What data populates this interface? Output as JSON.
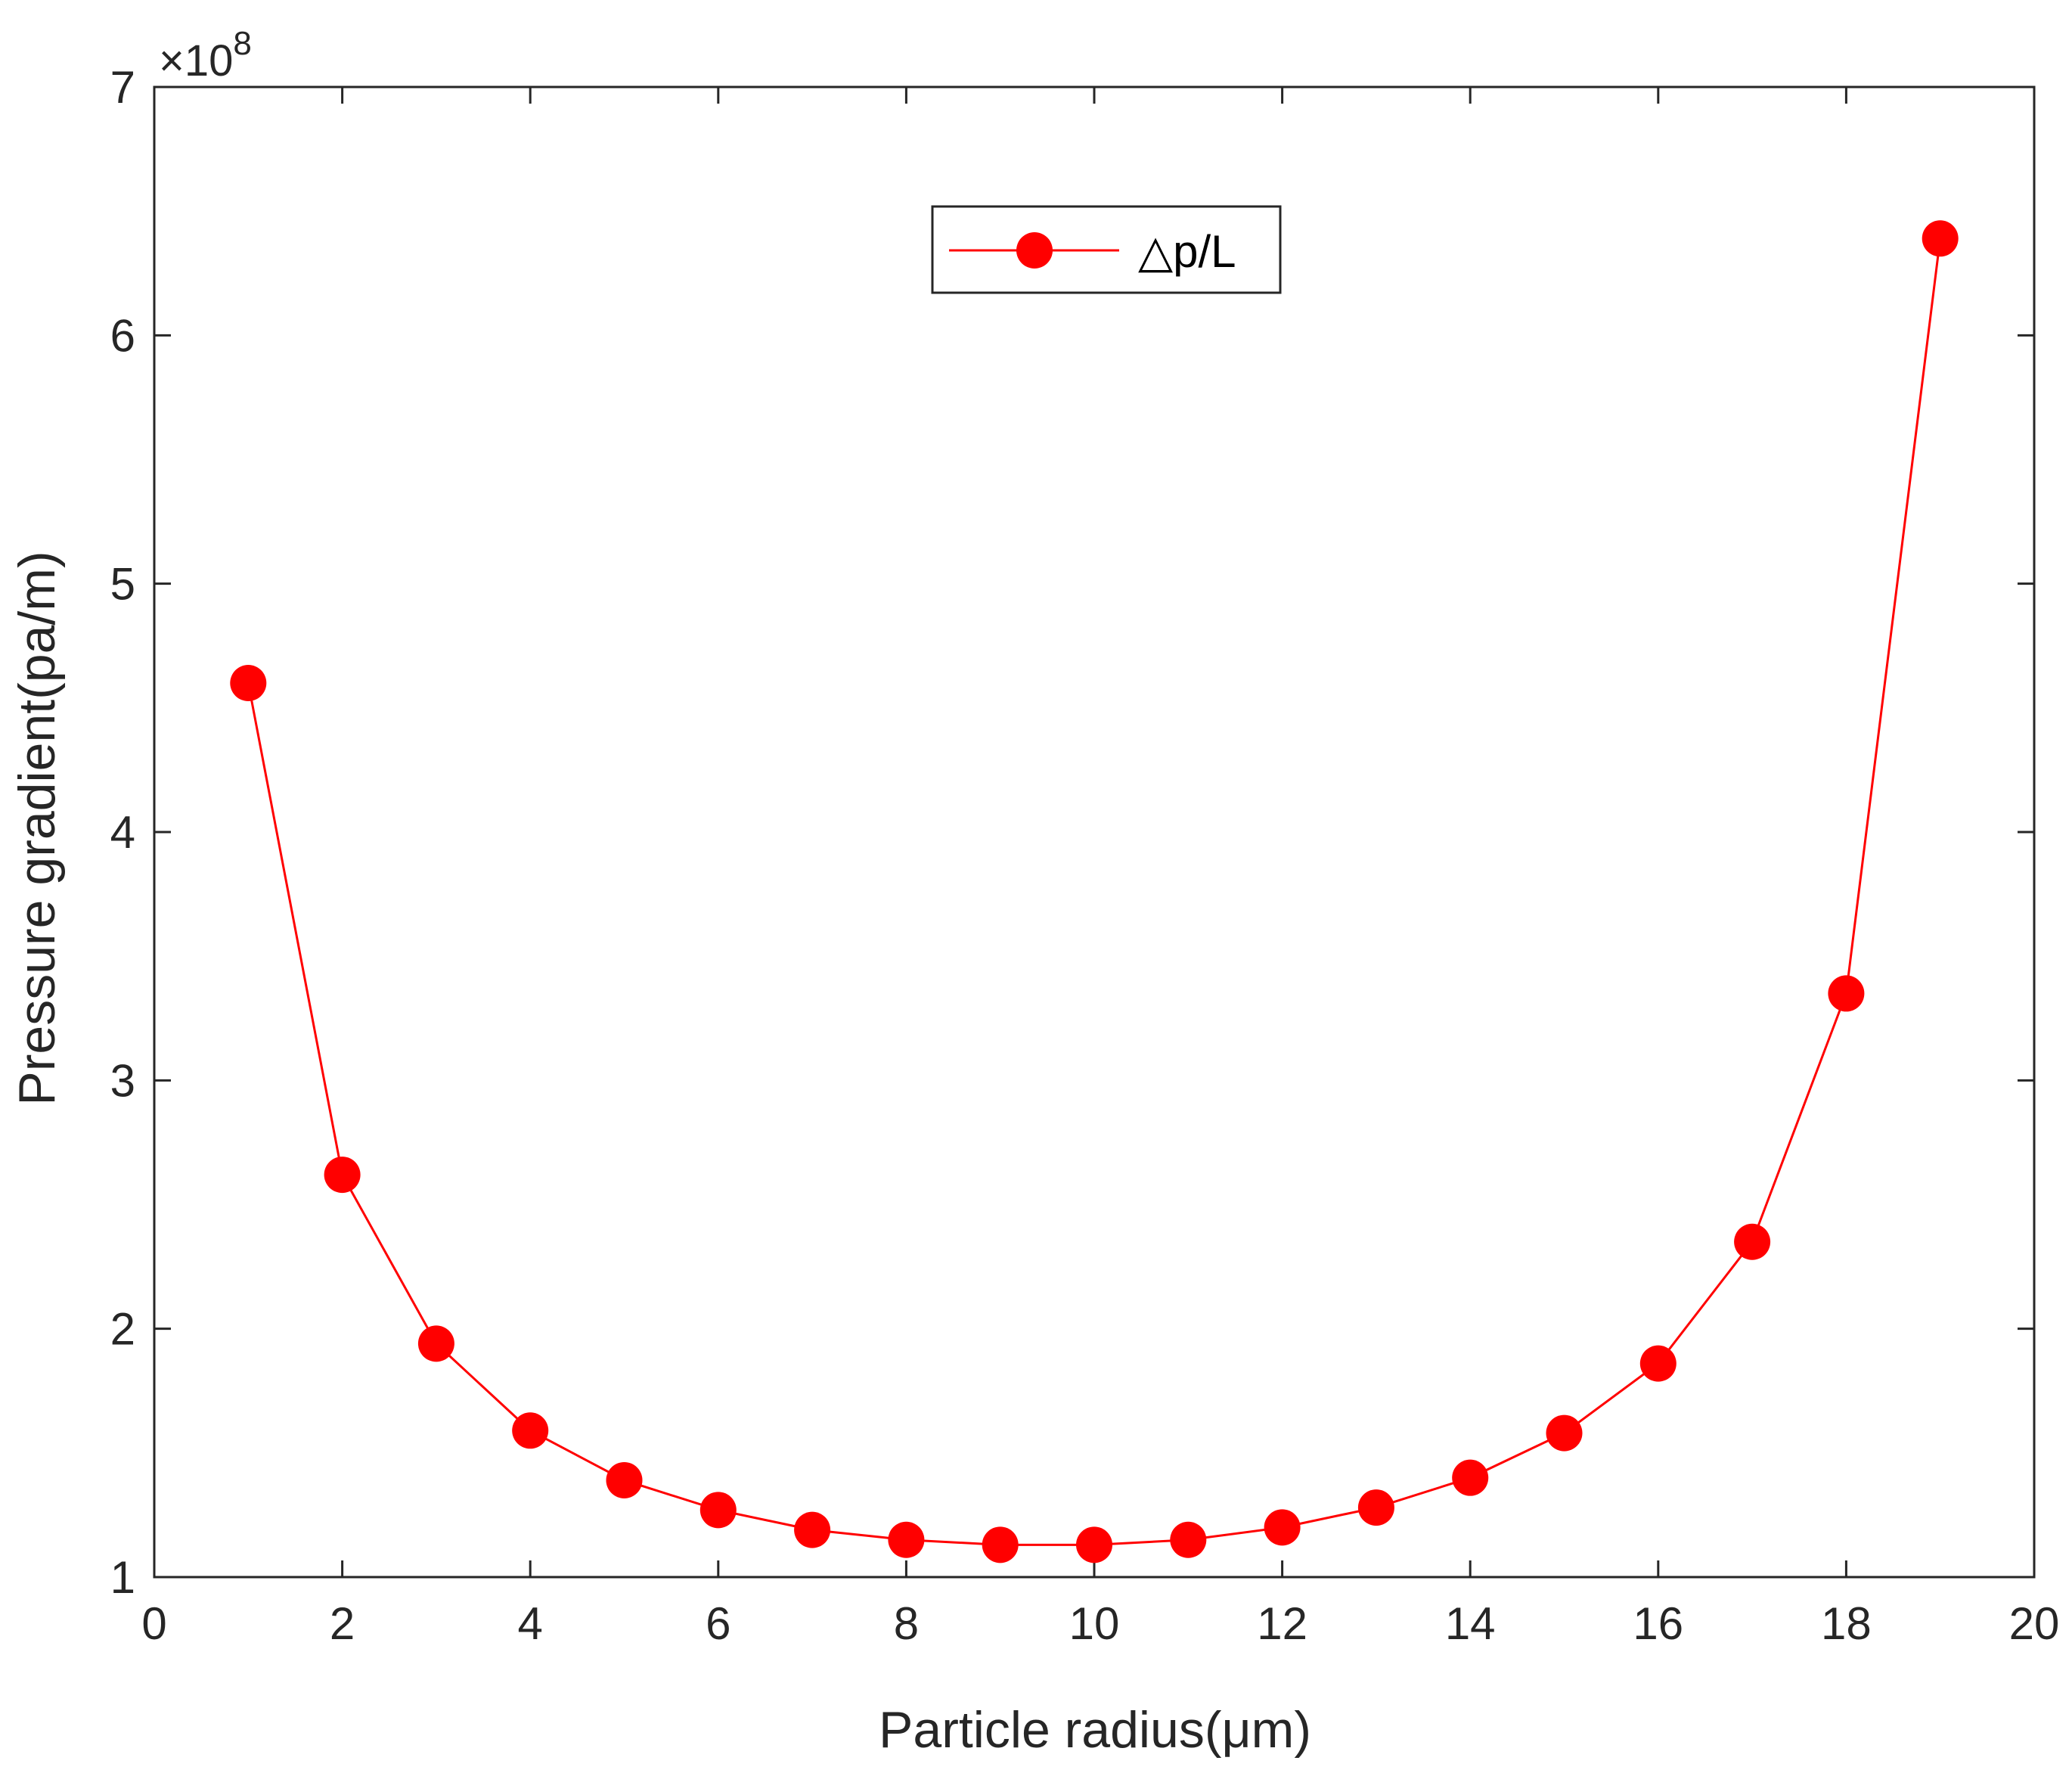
{
  "chart_data": {
    "type": "line",
    "title": "",
    "xlabel": "Particle radius(μm)",
    "ylabel": "Pressure gradient(pa/m)",
    "xlim": [
      0,
      20
    ],
    "ylim": [
      1,
      7
    ],
    "x_ticks": [
      "0",
      "2",
      "4",
      "6",
      "8",
      "10",
      "12",
      "14",
      "16",
      "18",
      "20"
    ],
    "y_ticks": [
      "1",
      "2",
      "3",
      "4",
      "5",
      "6",
      "7"
    ],
    "y_multiplier": {
      "base": "×10",
      "exponent": "8"
    },
    "grid": false,
    "legend_position": "top-center",
    "series": [
      {
        "name": "△p/L",
        "color": "#ff0000",
        "marker": "filled-circle",
        "x": [
          1,
          2,
          3,
          4,
          5,
          6,
          7,
          8,
          9,
          10,
          11,
          12,
          13,
          14,
          15,
          16,
          17,
          18,
          19
        ],
        "y": [
          4.6,
          2.62,
          1.94,
          1.59,
          1.39,
          1.27,
          1.19,
          1.15,
          1.13,
          1.13,
          1.15,
          1.2,
          1.28,
          1.4,
          1.58,
          1.86,
          2.35,
          3.35,
          6.39
        ]
      }
    ]
  }
}
